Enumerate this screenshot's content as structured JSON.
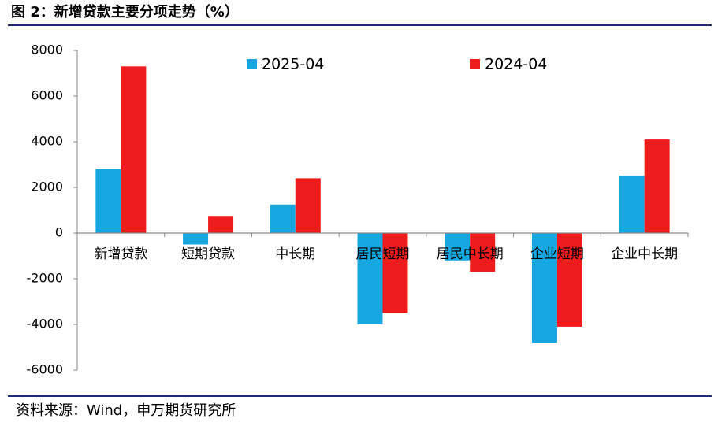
{
  "chart_data": {
    "type": "bar",
    "title": "图 2：新增贷款主要分项走势（%）",
    "source": "资料来源：Wind，申万期货研究所",
    "categories": [
      "新增贷款",
      "短期贷款",
      "中长期",
      "居民短期",
      "居民中长期",
      "企业短期",
      "企业中长期"
    ],
    "series": [
      {
        "name": "2025-04",
        "color": "#16a7e0",
        "values": [
          2800,
          -500,
          1250,
          -4000,
          -1200,
          -4800,
          2500
        ]
      },
      {
        "name": "2024-04",
        "color": "#ee1c1c",
        "values": [
          7300,
          750,
          2400,
          -3500,
          -1700,
          -4100,
          4100
        ]
      }
    ],
    "ylim": [
      -6000,
      8000
    ],
    "yticks": [
      -6000,
      -4000,
      -2000,
      0,
      2000,
      4000,
      6000,
      8000
    ],
    "grid": false
  }
}
